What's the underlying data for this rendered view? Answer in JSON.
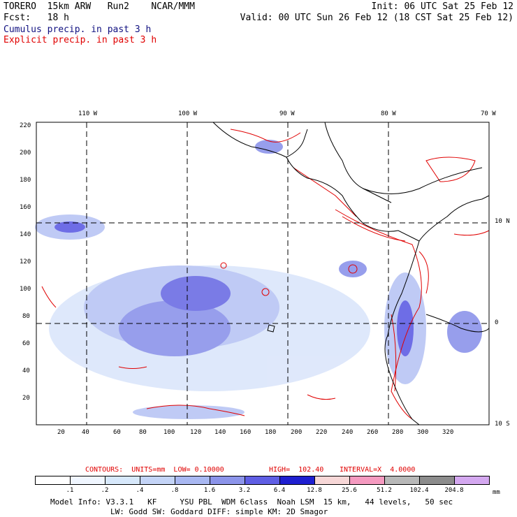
{
  "header": {
    "model": "TORERO  15km ARW   Run2    NCAR/MMM",
    "init": "Init: 06 UTC Sat 25 Feb 12",
    "fcst": "Fcst:   18 h",
    "valid": "Valid: 00 UTC Sun 26 Feb 12 (18 CST Sat 25 Feb 12)",
    "cumulus": "Cumulus precip. in past 3 h",
    "explicit": "Explicit precip. in past 3 h"
  },
  "map": {
    "top_lon_labels": [
      "110 W",
      "100 W",
      "90 W",
      "80 W",
      "70 W"
    ],
    "right_lat_labels": [
      "10 N",
      "0",
      "10 S"
    ],
    "y_ticks": [
      "220",
      "200",
      "180",
      "160",
      "140",
      "120",
      "100",
      "80",
      "60",
      "40",
      "20"
    ],
    "x_ticks": [
      "20",
      "40",
      "60",
      "80",
      "100",
      "120",
      "140",
      "160",
      "180",
      "200",
      "220",
      "240",
      "260",
      "280",
      "300",
      "320"
    ],
    "colors": {
      "cumulus": "#2020e0",
      "explicit": "#e00000",
      "land": "#000000"
    }
  },
  "contours": {
    "label": "CONTOURS:  UNITS=mm  LOW= 0.10000",
    "high": "HIGH=  102.40",
    "interval": "INTERVAL=X  4.0000"
  },
  "colorbar": {
    "labels": [
      ".1",
      ".2",
      ".4",
      ".8",
      "1.6",
      "3.2",
      "6.4",
      "12.8",
      "25.6",
      "51.2",
      "102.4",
      "204.8"
    ],
    "unit": "mm",
    "colors": [
      "#ffffff",
      "#f0f6ff",
      "#d7e8fb",
      "#c4d4f7",
      "#a9b8f2",
      "#8c94ea",
      "#5f5ee4",
      "#1f1fd0",
      "#f7d7d7",
      "#f59ac0",
      "#b8b8b8",
      "#8c8c8c",
      "#d4a8f0"
    ]
  },
  "footer": {
    "line1": "Model Info: V3.3.1   KF     YSU PBL  WDM 6class  Noah LSM  15 km,   44 levels,   50 sec",
    "line2": "LW: Godd SW: Goddard DIFF: simple KM: 2D Smagor"
  }
}
